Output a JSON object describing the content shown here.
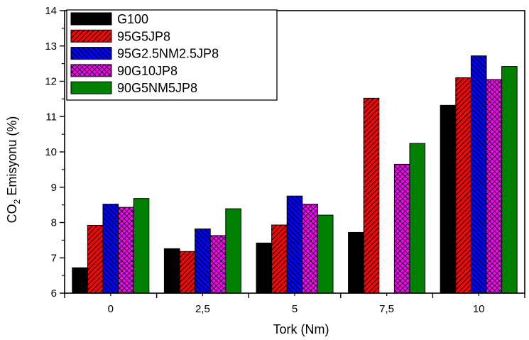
{
  "chart_data": {
    "type": "bar",
    "title": "",
    "xlabel": "Tork (Nm)",
    "ylabel": {
      "main": "CO",
      "sub": "2",
      "rest": " Emisyonu (%)"
    },
    "categories": [
      "0",
      "2,5",
      "5",
      "7,5",
      "10"
    ],
    "ylim": [
      6,
      14
    ],
    "yticks": [
      "6",
      "7",
      "8",
      "9",
      "10",
      "11",
      "12",
      "13",
      "14"
    ],
    "grid": false,
    "legend_position": "top-left",
    "series": [
      {
        "name": "G100",
        "color": "#000000",
        "pattern": "solid",
        "values": [
          6.72,
          7.26,
          7.42,
          7.72,
          11.32
        ]
      },
      {
        "name": "95G5JP8",
        "color": "#ff0000",
        "pattern": "diagonal-right",
        "values": [
          7.92,
          7.18,
          7.93,
          11.52,
          12.1
        ]
      },
      {
        "name": "95G2.5NM2.5JP8",
        "color": "#0000ff",
        "pattern": "diagonal-left",
        "values": [
          8.52,
          7.82,
          8.75,
          null,
          12.72
        ]
      },
      {
        "name": "90G10JP8",
        "color": "#ff00ff",
        "pattern": "crosshatch",
        "values": [
          8.43,
          7.63,
          8.52,
          9.65,
          12.05
        ]
      },
      {
        "name": "90G5NM5JP8",
        "color": "#008000",
        "pattern": "solid",
        "values": [
          8.68,
          8.39,
          8.21,
          10.24,
          12.42
        ]
      }
    ]
  }
}
